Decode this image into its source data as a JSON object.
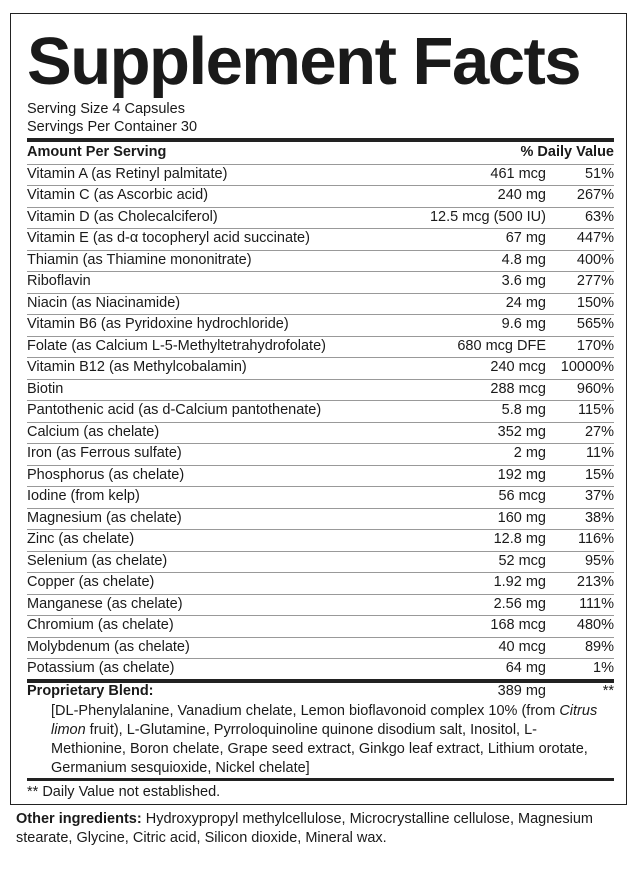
{
  "header": {
    "title": "Supplement Facts",
    "serving_size": "Serving Size 4 Capsules",
    "servings_per_container": "Servings Per Container 30"
  },
  "table": {
    "columns": [
      "Amount Per Serving",
      "% Daily Value"
    ],
    "rows": [
      [
        "Vitamin A (as Retinyl palmitate)",
        "461 mcg",
        "51%"
      ],
      [
        "Vitamin C (as Ascorbic acid)",
        "240 mg",
        "267%"
      ],
      [
        "Vitamin D (as Cholecalciferol)",
        "12.5 mcg (500 IU)",
        "63%"
      ],
      [
        "Vitamin E (as d-α tocopheryl acid succinate)",
        "67 mg",
        "447%"
      ],
      [
        "Thiamin (as Thiamine mononitrate)",
        "4.8 mg",
        "400%"
      ],
      [
        "Riboflavin",
        "3.6 mg",
        "277%"
      ],
      [
        "Niacin (as Niacinamide)",
        "24 mg",
        "150%"
      ],
      [
        "Vitamin B6 (as Pyridoxine hydrochloride)",
        "9.6 mg",
        "565%"
      ],
      [
        "Folate (as Calcium L-5-Methyltetrahydrofolate)",
        "680 mcg DFE",
        "170%"
      ],
      [
        "Vitamin B12 (as Methylcobalamin)",
        "240 mcg",
        "10000%"
      ],
      [
        "Biotin",
        "288 mcg",
        "960%"
      ],
      [
        "Pantothenic acid (as d-Calcium pantothenate)",
        "5.8 mg",
        "115%"
      ],
      [
        "Calcium (as chelate)",
        "352 mg",
        "27%"
      ],
      [
        "Iron (as Ferrous sulfate)",
        "2 mg",
        "11%"
      ],
      [
        "Phosphorus (as chelate)",
        "192 mg",
        "15%"
      ],
      [
        "Iodine (from kelp)",
        "56 mcg",
        "37%"
      ],
      [
        "Magnesium (as chelate)",
        "160 mg",
        "38%"
      ],
      [
        "Zinc (as chelate)",
        "12.8 mg",
        "116%"
      ],
      [
        "Selenium (as chelate)",
        "52 mcg",
        "95%"
      ],
      [
        "Copper (as chelate)",
        "1.92 mg",
        "213%"
      ],
      [
        "Manganese (as chelate)",
        "2.56 mg",
        "111%"
      ],
      [
        "Chromium (as chelate)",
        "168 mcg",
        "480%"
      ],
      [
        "Molybdenum (as chelate)",
        "40 mcg",
        "89%"
      ],
      [
        "Potassium (as chelate)",
        "64 mg",
        "1%"
      ]
    ]
  },
  "blend": {
    "name": "Proprietary Blend:",
    "amount": "389 mg",
    "dv": "**",
    "description": [
      "[DL-Phenylalanine, Vanadium chelate, Lemon bioflavonoid complex 10% (from ",
      "Citrus limon",
      " fruit), L-Glutamine, Pyrroloquinoline quinone disodium salt, Inositol, L-Methionine, Boron chelate, Grape seed extract, Ginkgo leaf extract, Lithium orotate, Germanium sesquioxide, Nickel chelate]"
    ]
  },
  "footnote": "** Daily Value not established.",
  "other": {
    "label": "Other ingredients:",
    "text": " Hydroxypropyl methylcellulose, Microcrystalline cellulose, Magnesium stearate, Glycine, Citric acid, Silicon dioxide, Mineral wax."
  }
}
